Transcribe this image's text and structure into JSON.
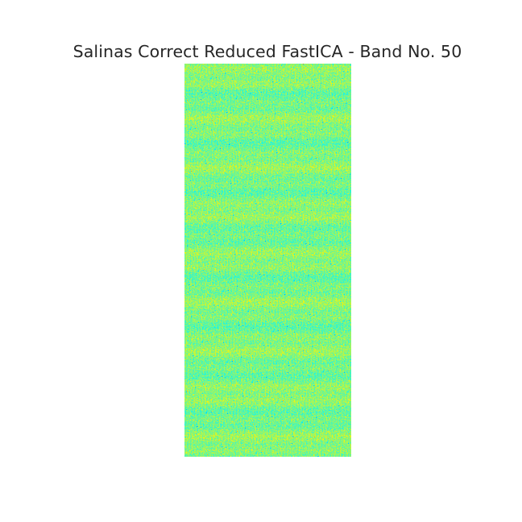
{
  "figure": {
    "title": "Salinas Correct Reduced FastICA - Band No. 50"
  },
  "image": {
    "description_colors": {
      "dominant": "#00c000",
      "bright": "#a0f000",
      "dark": "#00a030",
      "cyan_speckle": "#20b0a0"
    }
  }
}
